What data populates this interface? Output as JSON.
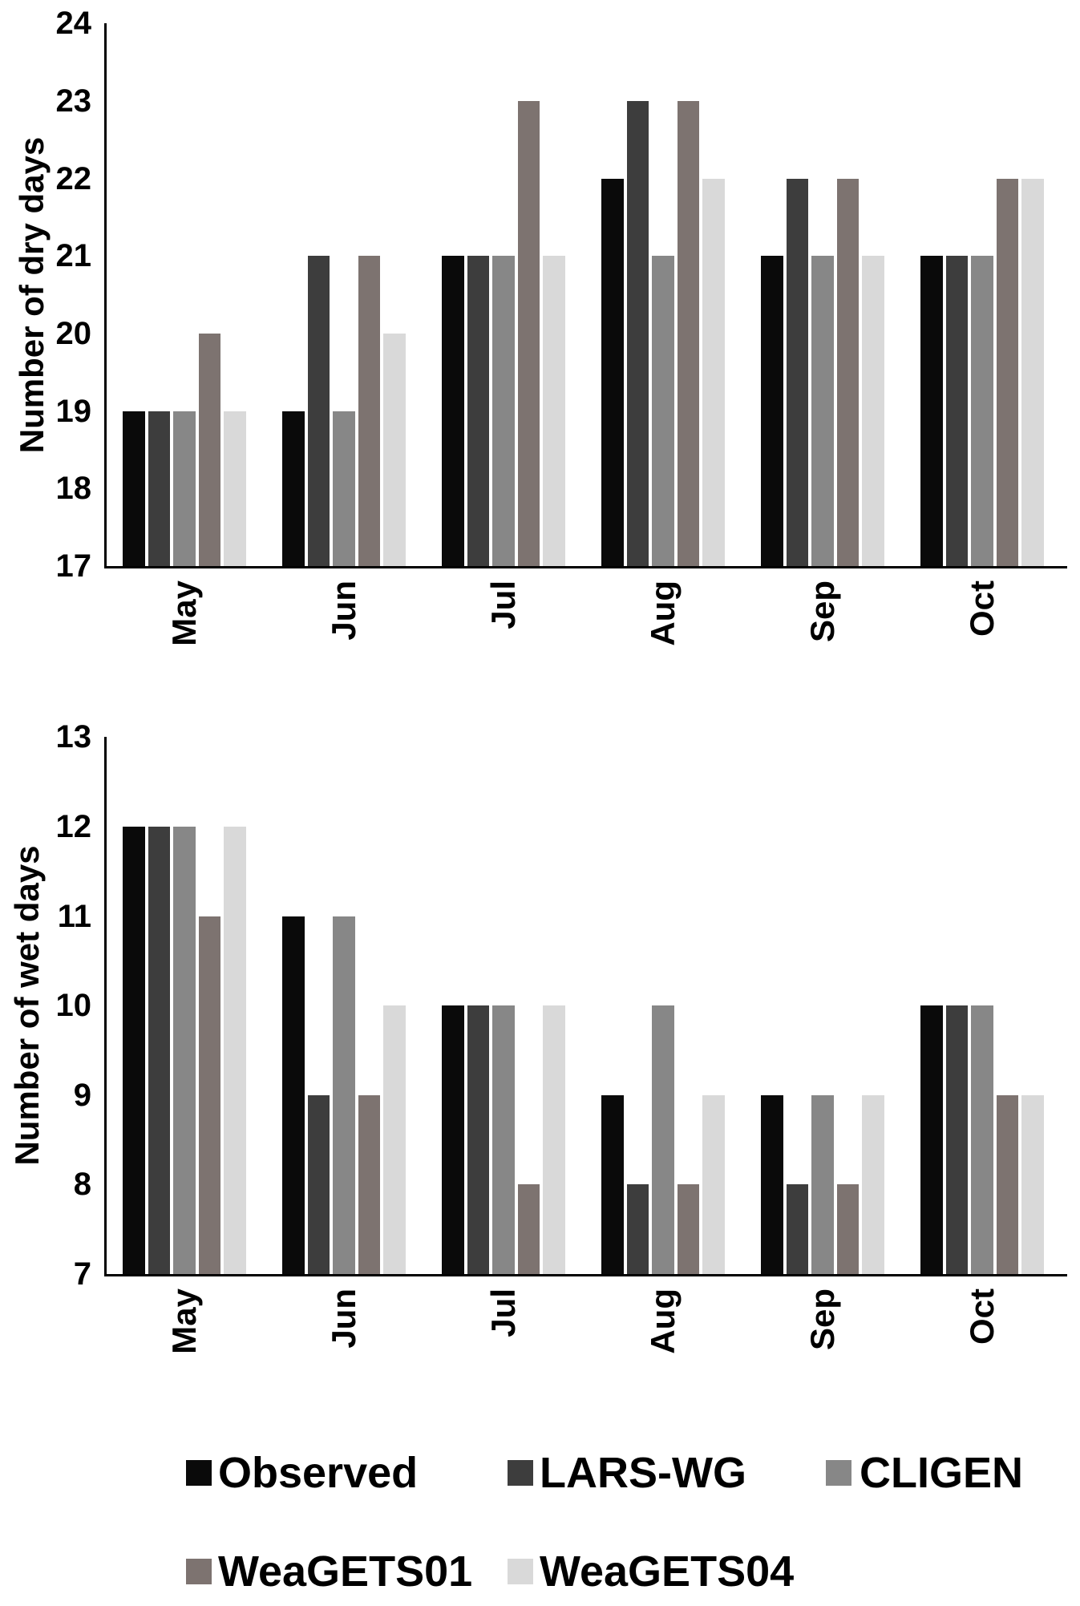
{
  "figure": {
    "description": "Two stacked grouped bar charts comparing observed and simulated monthly dry/wet day counts, with a shared legend below",
    "background_color": "#ffffff",
    "text_color": "#000000"
  },
  "chart_data": [
    {
      "type": "bar",
      "title": "",
      "ylabel": "Number of dry days",
      "xlabel": "",
      "categories": [
        "May",
        "Jun",
        "Jul",
        "Aug",
        "Sep",
        "Oct"
      ],
      "ylim": [
        17,
        24
      ],
      "yticks": [
        24,
        23,
        22,
        21,
        20,
        19,
        18,
        17
      ],
      "grid": false,
      "legend_position": "shared-below-figure",
      "series": [
        {
          "name": "Observed",
          "color": "#0a0a0a",
          "values": [
            19,
            19,
            21,
            22,
            21,
            21
          ]
        },
        {
          "name": "LARS-WG",
          "color": "#3d3d3d",
          "values": [
            19,
            21,
            21,
            23,
            22,
            21
          ]
        },
        {
          "name": "CLIGEN",
          "color": "#878787",
          "values": [
            19,
            19,
            21,
            21,
            21,
            21
          ]
        },
        {
          "name": "WeaGETS01",
          "color": "#7d7370",
          "values": [
            20,
            21,
            23,
            23,
            22,
            22
          ]
        },
        {
          "name": "WeaGETS04",
          "color": "#d9d9d9",
          "values": [
            19,
            20,
            21,
            22,
            21,
            22
          ]
        }
      ]
    },
    {
      "type": "bar",
      "title": "",
      "ylabel": "Number of wet days",
      "xlabel": "",
      "categories": [
        "May",
        "Jun",
        "Jul",
        "Aug",
        "Sep",
        "Oct"
      ],
      "ylim": [
        7,
        13
      ],
      "yticks": [
        13,
        12,
        11,
        10,
        9,
        8,
        7
      ],
      "grid": false,
      "legend_position": "shared-below-figure",
      "series": [
        {
          "name": "Observed",
          "color": "#0a0a0a",
          "values": [
            12,
            11,
            10,
            9,
            9,
            10
          ]
        },
        {
          "name": "LARS-WG",
          "color": "#3d3d3d",
          "values": [
            12,
            9,
            10,
            8,
            8,
            10
          ]
        },
        {
          "name": "CLIGEN",
          "color": "#878787",
          "values": [
            12,
            11,
            10,
            10,
            9,
            10
          ]
        },
        {
          "name": "WeaGETS01",
          "color": "#7d7370",
          "values": [
            11,
            9,
            8,
            8,
            8,
            9
          ]
        },
        {
          "name": "WeaGETS04",
          "color": "#d9d9d9",
          "values": [
            12,
            10,
            10,
            9,
            9,
            9
          ]
        }
      ]
    }
  ],
  "legend": {
    "rows": [
      {
        "items": [
          {
            "label": "Observed"
          },
          {
            "label": "LARS-WG"
          },
          {
            "label": "CLIGEN"
          }
        ]
      },
      {
        "items": [
          {
            "label": "WeaGETS01"
          },
          {
            "label": "WeaGETS04"
          }
        ]
      }
    ]
  }
}
